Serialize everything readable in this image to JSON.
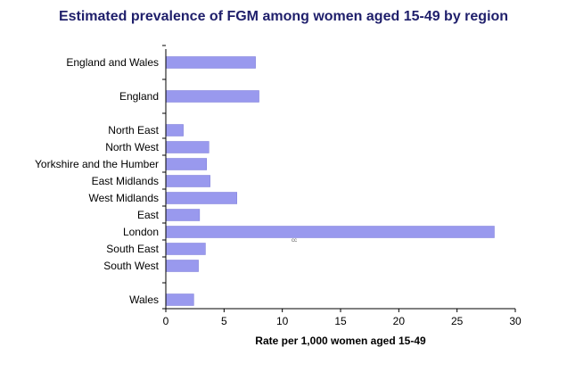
{
  "chart_data": {
    "type": "bar",
    "orientation": "horizontal",
    "title": "Estimated prevalence of FGM among women aged 15-49 by region",
    "xlabel": "Rate per 1,000 women aged 15-49",
    "ylabel": "",
    "categories": [
      "England and Wales",
      "England",
      "North East",
      "North West",
      "Yorkshire and the Humber",
      "East Midlands",
      "West Midlands",
      "East",
      "London",
      "South East",
      "South West",
      "Wales"
    ],
    "values": [
      7.7,
      8.0,
      1.5,
      3.7,
      3.5,
      3.8,
      6.1,
      2.9,
      28.2,
      3.4,
      2.8,
      2.4
    ],
    "xlim": [
      0,
      30
    ],
    "xticks": [
      0,
      5,
      10,
      15,
      20,
      25,
      30
    ],
    "grid": false,
    "legend": "none",
    "bar_color": "#9999ee",
    "bar_edge_color": "#7a7ad8",
    "title_color": "#1f1f6b",
    "annotation": "cc"
  }
}
